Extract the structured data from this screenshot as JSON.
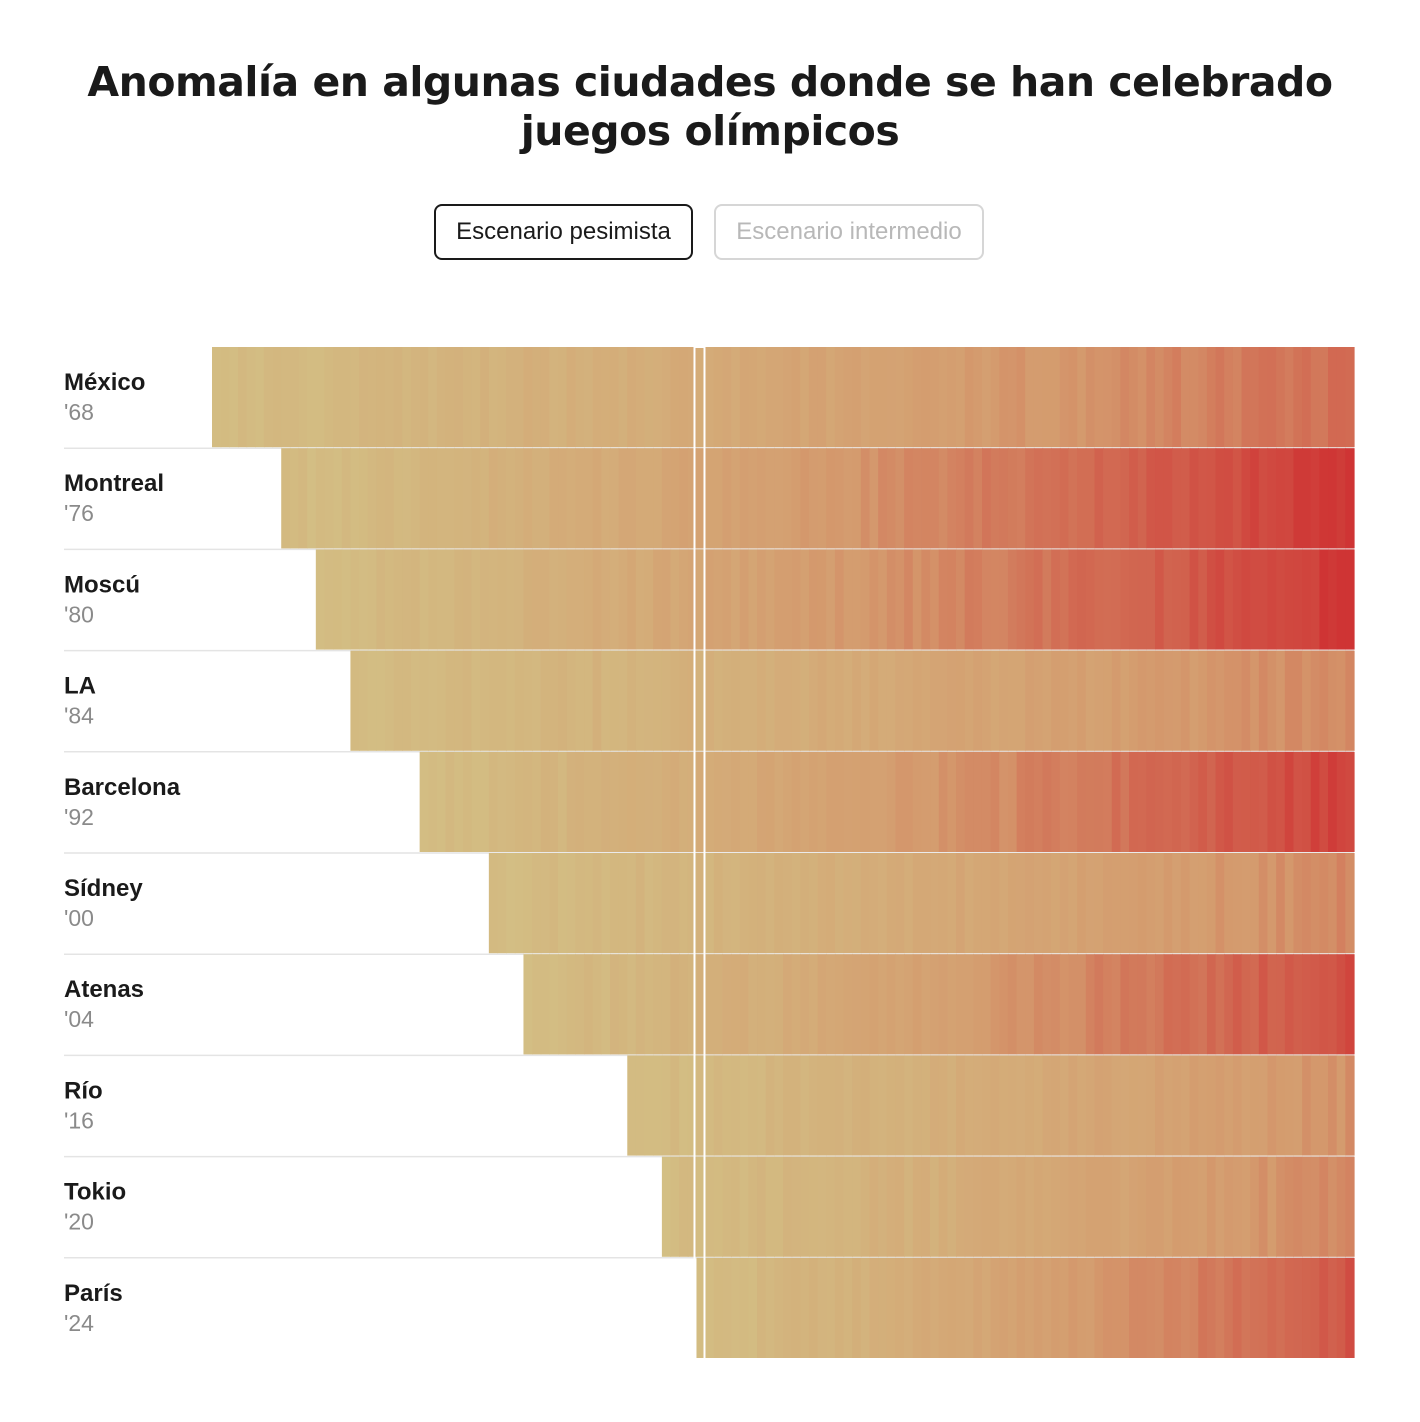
{
  "title": {
    "line1": "Anomalía en algunas ciudades donde se han celebrado",
    "line2": "juegos olímpicos"
  },
  "scenarios": {
    "options": [
      "Escenario pesimista",
      "Escenario intermedio"
    ],
    "selected": "Escenario pesimista"
  },
  "colors": {
    "cool": "#d3c286",
    "mid": "#d49b6e",
    "hot": "#cf3434",
    "separator": "#e4e4e4",
    "marker": "#ffffff"
  },
  "chart_data": {
    "type": "heatmap",
    "xlim": [
      1968,
      2100
    ],
    "marker_year": 2024,
    "rows": [
      {
        "city": "México",
        "year_label": "'68",
        "start": 1968,
        "end_intensity": 0.72
      },
      {
        "city": "Montreal",
        "year_label": "'76",
        "start": 1976,
        "end_intensity": 1.0
      },
      {
        "city": "Moscú",
        "year_label": "'80",
        "start": 1980,
        "end_intensity": 1.0
      },
      {
        "city": "LA",
        "year_label": "'84",
        "start": 1984,
        "end_intensity": 0.6
      },
      {
        "city": "Barcelona",
        "year_label": "'92",
        "start": 1992,
        "end_intensity": 0.95
      },
      {
        "city": "Sídney",
        "year_label": "'00",
        "start": 2000,
        "end_intensity": 0.6
      },
      {
        "city": "Atenas",
        "year_label": "'04",
        "start": 2004,
        "end_intensity": 0.9
      },
      {
        "city": "Río",
        "year_label": "'16",
        "start": 2016,
        "end_intensity": 0.55
      },
      {
        "city": "Tokio",
        "year_label": "'20",
        "start": 2020,
        "end_intensity": 0.6
      },
      {
        "city": "París",
        "year_label": "'24",
        "start": 2024,
        "end_intensity": 0.85
      }
    ]
  }
}
